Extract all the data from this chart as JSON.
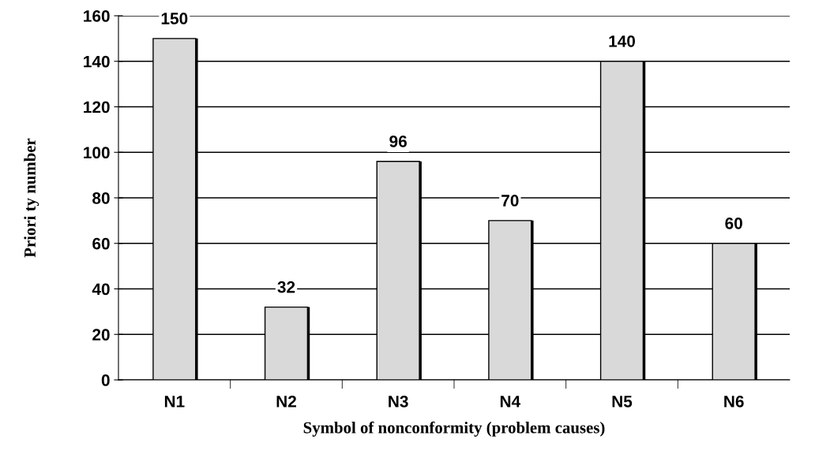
{
  "chart_data": {
    "type": "bar",
    "xlabel": "Symbol of nonconformity (problem causes)",
    "ylabel": "Priori ty number",
    "categories": [
      "N1",
      "N2",
      "N3",
      "N4",
      "N5",
      "N6"
    ],
    "values": [
      150,
      32,
      96,
      70,
      140,
      60
    ],
    "color": "#d9d9d9",
    "data_labels": true,
    "grid": "y",
    "ylim": [
      0,
      160
    ],
    "yticks": [
      0,
      20,
      40,
      60,
      80,
      100,
      120,
      140,
      160
    ]
  }
}
